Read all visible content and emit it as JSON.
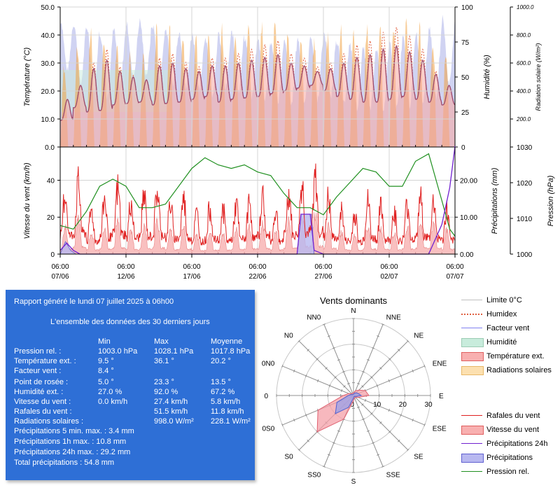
{
  "chart_data": [
    {
      "type": "line",
      "panel": "top",
      "ylabel_left": "Température (°C)",
      "ylim_left": [
        0,
        50
      ],
      "yticks_left": [
        "0.0",
        "10.0",
        "20.0",
        "30.0",
        "40.0",
        "50.0"
      ],
      "ylabel_right1": "Humidité (%)",
      "ylim_right1": [
        0,
        100
      ],
      "yticks_right1": [
        "0",
        "25",
        "50",
        "75",
        "100"
      ],
      "ylabel_right2": "Radiation solaire (W/m²)",
      "ylim_right2": [
        0,
        1000
      ],
      "yticks_right2": [
        "200.0",
        "400.0",
        "600.0",
        "800.0",
        "1000.0"
      ],
      "grid": true,
      "series_ref": [
        "Humidité",
        "Température ext.",
        "Humidex",
        "Limite 0°C",
        "Radiations solaires",
        "Facteur vent"
      ],
      "daily_temperature": {
        "min": [
          9.5,
          14.0,
          12.5,
          13.0,
          15.0,
          15.5,
          16.0,
          15.0,
          15.5,
          16.0,
          17.0,
          18.0,
          16.0,
          17.0,
          17.5,
          18.0,
          19.0,
          20.0,
          21.0,
          22.0,
          20.0,
          18.0,
          17.0,
          16.0,
          16.0,
          17.0,
          18.0,
          17.0,
          16.0,
          15.0
        ],
        "max": [
          17.0,
          22.0,
          28.0,
          31.0,
          27.0,
          25.0,
          24.0,
          29.0,
          30.0,
          28.0,
          27.0,
          29.0,
          29.0,
          30.0,
          31.0,
          32.0,
          33.0,
          30.0,
          29.0,
          27.0,
          28.0,
          30.0,
          32.0,
          33.0,
          35.0,
          36.1,
          34.0,
          31.0,
          26.0,
          22.0
        ]
      },
      "daily_humidity": {
        "min": [
          55,
          45,
          40,
          35,
          45,
          50,
          52,
          48,
          45,
          42,
          40,
          38,
          42,
          40,
          36,
          35,
          33,
          30,
          32,
          34,
          35,
          30,
          28,
          27,
          27,
          28,
          30,
          33,
          35,
          45
        ],
        "max": [
          90,
          88,
          85,
          80,
          85,
          88,
          90,
          86,
          84,
          82,
          80,
          78,
          80,
          82,
          78,
          76,
          74,
          75,
          78,
          80,
          82,
          76,
          72,
          70,
          70,
          74,
          78,
          82,
          86,
          92
        ]
      },
      "daily_solar_peak": [
        650,
        820,
        880,
        900,
        760,
        700,
        680,
        900,
        920,
        880,
        860,
        900,
        910,
        930,
        920,
        940,
        950,
        900,
        880,
        860,
        870,
        920,
        940,
        960,
        980,
        998,
        960,
        930,
        850,
        750
      ]
    },
    {
      "type": "line",
      "panel": "bottom",
      "ylabel_left": "Vitesse du vent (km/h)",
      "ylim_left": [
        0,
        58
      ],
      "yticks_left": [
        "0",
        "20",
        "40"
      ],
      "ylabel_right1": "Précipitations (mm)",
      "ylim_right1": [
        0,
        29
      ],
      "yticks_right1": [
        "0.00",
        "10.00",
        "20.00"
      ],
      "ylabel_right2": "Pression (hPa)",
      "ylim_right2": [
        1000,
        1030
      ],
      "yticks_right2": [
        "1000",
        "1010",
        "1020",
        "1030"
      ],
      "grid": true,
      "series_ref": [
        "Rafales du vent",
        "Vitesse du vent",
        "Précipitations 24h",
        "Précipitations",
        "Pression rel."
      ],
      "daily_gust_max": [
        42,
        48,
        30,
        38,
        45,
        36,
        40,
        44,
        35,
        38,
        28,
        32,
        30,
        34,
        36,
        40,
        30,
        42,
        48,
        51.5,
        38,
        30,
        28,
        36,
        32,
        30,
        34,
        38,
        36,
        30
      ],
      "daily_wind_avg": [
        10,
        14,
        8,
        10,
        12,
        9,
        10,
        12,
        9,
        10,
        7,
        8,
        8,
        9,
        10,
        11,
        8,
        12,
        14,
        15,
        11,
        8,
        7,
        10,
        9,
        8,
        10,
        12,
        11,
        9
      ],
      "pressure_points": [
        [
          0,
          1008
        ],
        [
          1,
          1007
        ],
        [
          2,
          1012
        ],
        [
          3,
          1019
        ],
        [
          4,
          1021
        ],
        [
          5,
          1019
        ],
        [
          6,
          1013
        ],
        [
          7,
          1013
        ],
        [
          8,
          1014
        ],
        [
          9,
          1019
        ],
        [
          10,
          1024
        ],
        [
          11,
          1027
        ],
        [
          12,
          1025
        ],
        [
          13,
          1024
        ],
        [
          14,
          1025
        ],
        [
          15,
          1023
        ],
        [
          16,
          1022
        ],
        [
          17,
          1017
        ],
        [
          18,
          1013
        ],
        [
          19,
          1013
        ],
        [
          20,
          1011
        ],
        [
          21,
          1016
        ],
        [
          22,
          1020
        ],
        [
          23,
          1024
        ],
        [
          24,
          1023
        ],
        [
          25,
          1019
        ],
        [
          26,
          1019
        ],
        [
          27,
          1026
        ],
        [
          28,
          1028.1
        ],
        [
          29,
          1015
        ],
        [
          29.6,
          1007
        ],
        [
          30,
          1005
        ]
      ],
      "precip24h_points": [
        [
          0,
          1.0
        ],
        [
          0.5,
          3.0
        ],
        [
          1.0,
          1.0
        ],
        [
          1.5,
          0
        ],
        [
          18.0,
          0
        ],
        [
          18.3,
          10.8
        ],
        [
          19.0,
          10.8
        ],
        [
          19.3,
          1.0
        ],
        [
          20.0,
          0
        ],
        [
          28.0,
          0
        ],
        [
          29.0,
          8.0
        ],
        [
          29.6,
          18.0
        ],
        [
          30.0,
          29.2
        ]
      ],
      "precip_points": [
        [
          0,
          0
        ],
        [
          0.4,
          3.4
        ],
        [
          0.8,
          1.0
        ],
        [
          1.2,
          0
        ],
        [
          18.0,
          0
        ],
        [
          18.3,
          10.8
        ],
        [
          19.1,
          10.8
        ],
        [
          19.3,
          0
        ],
        [
          30.0,
          0
        ]
      ]
    },
    {
      "type": "radar",
      "title": "Vents dominants",
      "directions": [
        "N",
        "NNE",
        "NE",
        "ENE",
        "E",
        "ESE",
        "SE",
        "SSE",
        "S",
        "SS0",
        "S0",
        "0S0",
        "0",
        "0N0",
        "N0",
        "NN0"
      ],
      "rticks": [
        "0",
        "10",
        "20",
        "30"
      ],
      "rlim": [
        0,
        30
      ],
      "series": [
        {
          "name": "Rafales du vent",
          "values": [
            1,
            2,
            3,
            5,
            6,
            2,
            1,
            1,
            2,
            10,
            20,
            15,
            4,
            2,
            1,
            1
          ]
        },
        {
          "name": "Vitesse du vent",
          "values": [
            0.5,
            1,
            1.5,
            2,
            3,
            1,
            0.5,
            0.5,
            1,
            5,
            10,
            7,
            2,
            1,
            0.5,
            0.5
          ]
        }
      ]
    }
  ],
  "xaxis": {
    "ticks": [
      {
        "time": "06:00",
        "date": "07/06"
      },
      {
        "time": "06:00",
        "date": "12/06"
      },
      {
        "time": "06:00",
        "date": "17/06"
      },
      {
        "time": "06:00",
        "date": "22/06"
      },
      {
        "time": "06:00",
        "date": "27/06"
      },
      {
        "time": "06:00",
        "date": "02/07"
      },
      {
        "time": "06:00",
        "date": "07/07"
      }
    ]
  },
  "report": {
    "title": "Rapport généré le lundi 07 juillet 2025 à 06h00",
    "subtitle": "L'ensemble des données des 30 derniers jours",
    "col_min": "Min",
    "col_max": "Max",
    "col_avg": "Moyenne",
    "rows": [
      {
        "label": "Pression rel. :",
        "min": "1003.0 hPa",
        "max": "1028.1 hPa",
        "avg": "1017.8 hPa"
      },
      {
        "label": "Température ext. :",
        "min": "9.5 °",
        "max": "36.1 °",
        "avg": "20.2 °"
      },
      {
        "label": "Facteur vent :",
        "min": "8.4 °",
        "max": "",
        "avg": ""
      },
      {
        "label": "Point de rosée :",
        "min": "5.0 °",
        "max": "23.3 °",
        "avg": "13.5 °"
      },
      {
        "label": "Humidité ext. :",
        "min": "27.0 %",
        "max": "92.0 %",
        "avg": "67.2 %"
      },
      {
        "label": "Vitesse du vent :",
        "min": "0.0 km/h",
        "max": "27.4 km/h",
        "avg": "5.8 km/h"
      },
      {
        "label": "Rafales du vent :",
        "min": "",
        "max": "51.5 km/h",
        "avg": "11.8 km/h"
      },
      {
        "label": "Radiations solaires :",
        "min": "",
        "max": "998.0 W/m²",
        "avg": "228.1 W/m²"
      }
    ],
    "extra": [
      "Précipitations 5 min. max. : 3.4 mm",
      "Précipitations 1h max. : 10.8 mm",
      "Précipitations 24h max. : 29.2 mm",
      "Total précipitations : 54.8 mm"
    ]
  },
  "legend": {
    "group1": [
      {
        "label": "Limite 0°C",
        "style": "line",
        "color": "#c0c0c0"
      },
      {
        "label": "Humidex",
        "style": "dotted",
        "color": "#e06040"
      },
      {
        "label": "Facteur vent",
        "style": "line",
        "color": "#8080f0"
      },
      {
        "label": "Humidité",
        "style": "box",
        "color": "#c8ecdc",
        "border": "#9cccb4"
      },
      {
        "label": "Température ext.",
        "style": "box",
        "color": "#f8b0b0",
        "border": "#e06060"
      },
      {
        "label": "Radiations solaires",
        "style": "box",
        "color": "#fce0b0",
        "border": "#e8b868"
      }
    ],
    "group2": [
      {
        "label": "Rafales du vent",
        "style": "line",
        "color": "#e02020"
      },
      {
        "label": "Vitesse du vent",
        "style": "box",
        "color": "#f8b0b0",
        "border": "#e06060"
      },
      {
        "label": "Précipitations 24h",
        "style": "line",
        "color": "#7020d0"
      },
      {
        "label": "Précipitations",
        "style": "box",
        "color": "#b8b8f0",
        "border": "#6060d0"
      },
      {
        "label": "Pression rel.",
        "style": "line",
        "color": "#209020"
      }
    ]
  },
  "colors": {
    "temperature": "#9c4a6c",
    "temperature_fill": "#f8a8a0",
    "humidex": "#e05a3a",
    "humidity_fill": "#c0c4ee",
    "humidity_fill_low": "#c8ecdc",
    "solar_fill": "#f0a040",
    "gust": "#e02020",
    "wind_fill": "#f8b0b0",
    "precip_24h": "#7020d0",
    "pressure": "#209020",
    "report_bg": "#2e6fd6"
  }
}
